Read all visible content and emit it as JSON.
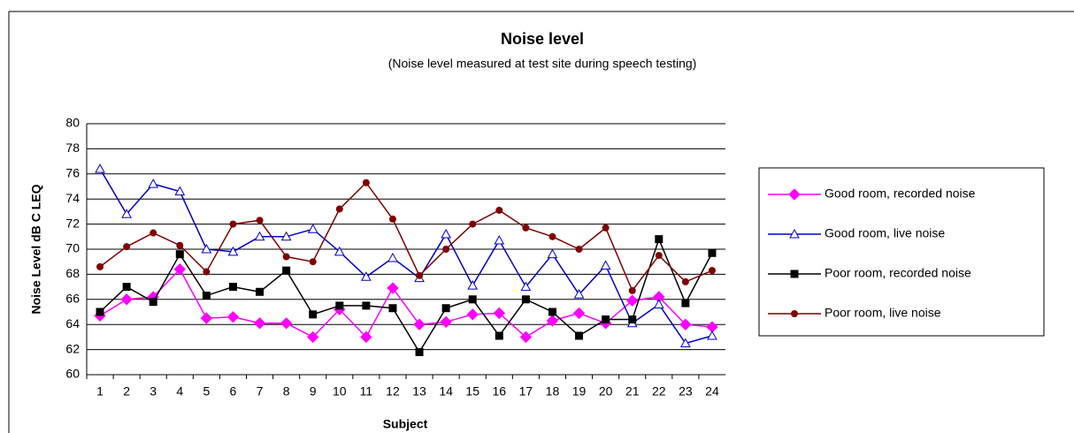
{
  "chart_data": {
    "type": "line",
    "title": "Noise level",
    "subtitle": "(Noise level measured at test site during speech testing)",
    "x_label": "Subject",
    "y_label": "Noise Level dB C LEQ",
    "categories": [
      "1",
      "2",
      "3",
      "4",
      "5",
      "6",
      "7",
      "8",
      "9",
      "10",
      "11",
      "12",
      "13",
      "14",
      "15",
      "16",
      "17",
      "18",
      "19",
      "20",
      "21",
      "22",
      "23",
      "24"
    ],
    "series": [
      {
        "name": "Good room, recorded noise",
        "color": "#ff00ff",
        "marker": "diamond",
        "values": [
          64.7,
          66,
          66.2,
          68.4,
          64.5,
          64.6,
          64.1,
          64.1,
          63,
          65.2,
          63,
          66.9,
          64,
          64.2,
          64.8,
          64.9,
          63,
          64.3,
          64.9,
          64.1,
          65.9,
          66.2,
          64,
          63.8
        ]
      },
      {
        "name": "Good room, live noise",
        "color": "#0000cc",
        "marker": "triangle",
        "values": [
          76.4,
          72.8,
          75.2,
          74.6,
          70,
          69.8,
          71,
          71,
          71.6,
          69.8,
          67.8,
          69.3,
          67.7,
          71.2,
          67.1,
          70.7,
          67,
          69.6,
          66.4,
          68.7,
          64.1,
          65.6,
          62.5,
          63.1
        ]
      },
      {
        "name": "Poor room, recorded noise",
        "color": "#000000",
        "marker": "square",
        "values": [
          65,
          67,
          65.8,
          69.6,
          66.3,
          67,
          66.6,
          68.3,
          64.8,
          65.5,
          65.5,
          65.3,
          61.8,
          65.3,
          66,
          63.1,
          66,
          65,
          63.1,
          64.4,
          64.4,
          70.8,
          65.7,
          69.7
        ]
      },
      {
        "name": "Poor room, live noise",
        "color": "#800000",
        "marker": "circle",
        "values": [
          68.6,
          70.2,
          71.3,
          70.3,
          68.2,
          72,
          72.3,
          69.4,
          69,
          73.2,
          75.3,
          72.4,
          67.9,
          70,
          72,
          73.1,
          71.7,
          71,
          70,
          71.7,
          66.7,
          69.5,
          67.4,
          68.3
        ]
      }
    ],
    "ylim": [
      60,
      80
    ],
    "yticks": [
      60,
      62,
      64,
      66,
      68,
      70,
      72,
      74,
      76,
      78,
      80
    ],
    "grid": true,
    "legend": "right"
  }
}
